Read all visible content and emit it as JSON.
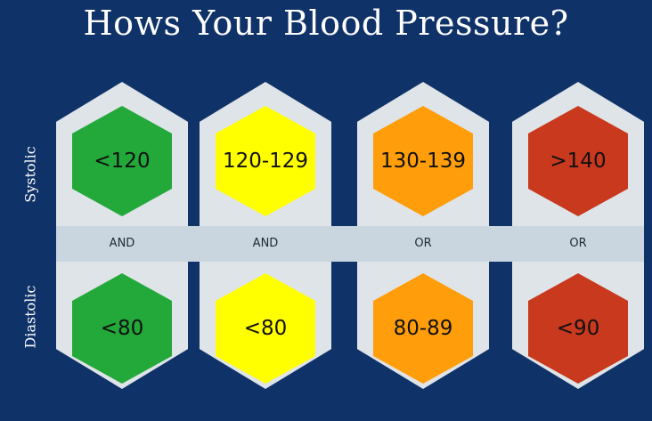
{
  "title": "Hows Your Blood Pressure?",
  "row_labels": {
    "top": "Systolic",
    "bottom": "Diastolic"
  },
  "columns": [
    {
      "systolic": "<120",
      "connector": "AND",
      "diastolic": "<80",
      "color": "#23a83a"
    },
    {
      "systolic": "120-129",
      "connector": "AND",
      "diastolic": "<80",
      "color": "#ffff00"
    },
    {
      "systolic": "130-139",
      "connector": "OR",
      "diastolic": "80-89",
      "color": "#ff9e0a"
    },
    {
      "systolic": ">140",
      "connector": "OR",
      "diastolic": "<90",
      "color": "#c8391e"
    }
  ]
}
